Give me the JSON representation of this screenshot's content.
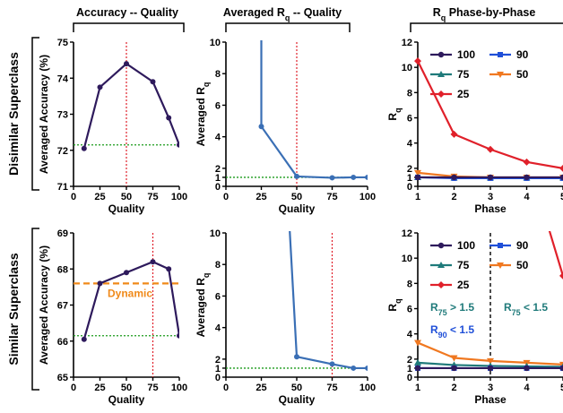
{
  "columns": {
    "left": "Accuracy -- Quality",
    "middle": {
      "main": "Averaged R",
      "sub": "q",
      "tail": " -- Quality"
    },
    "right": {
      "main": "R",
      "sub": "q",
      "tail": " Phase-by-Phase"
    }
  },
  "rows": {
    "top": "Disimilar Superclass",
    "bottom": "Similar Superclass"
  },
  "colors": {
    "accuracy_line": "#2e1a5c",
    "rq_line": "#3a6fb5",
    "q100": "#2e1a5c",
    "q90": "#1f4fd8",
    "q75": "#1f7a7a",
    "q50": "#f07820",
    "q25": "#e0202a",
    "ref_red": "#e0202a",
    "ref_green": "#1a9a1a",
    "dynamic": "#f08a1a"
  },
  "chart_data": [
    {
      "id": "acc_dis",
      "type": "line",
      "xlabel": "Quality",
      "ylabel": "Averaged Accuracy (%)",
      "xlim": [
        0,
        100
      ],
      "ylim": [
        71,
        75
      ],
      "xticks": [
        0,
        25,
        50,
        75,
        100
      ],
      "yticks": [
        71,
        72,
        73,
        74,
        75
      ],
      "x": [
        10,
        25,
        50,
        75,
        90,
        100
      ],
      "y": [
        72.05,
        73.75,
        74.4,
        73.9,
        72.9,
        72.15
      ],
      "vline": 50,
      "hline": 72.15
    },
    {
      "id": "acc_sim",
      "type": "line",
      "xlabel": "Quality",
      "ylabel": "Averaged Accuracy (%)",
      "xlim": [
        0,
        100
      ],
      "ylim": [
        65,
        69
      ],
      "xticks": [
        0,
        25,
        50,
        75,
        100
      ],
      "yticks": [
        65,
        66,
        67,
        68,
        69
      ],
      "x": [
        10,
        25,
        50,
        75,
        90,
        100
      ],
      "y": [
        66.05,
        67.6,
        67.9,
        68.2,
        68.0,
        66.15
      ],
      "vline": 75,
      "hline": 66.15,
      "dynamic_line": 67.6,
      "dynamic_label": "Dynamic"
    },
    {
      "id": "rq_dis",
      "type": "line",
      "xlabel": "Quality",
      "ylabel": {
        "main": "Averaged R",
        "sub": "q"
      },
      "xlim": [
        0,
        100
      ],
      "ylim": [
        0,
        10
      ],
      "xticks": [
        0,
        25,
        50,
        75,
        100
      ],
      "yticks": [
        0,
        1,
        2,
        4,
        6,
        8,
        10
      ],
      "x": [
        25,
        50,
        75,
        90,
        100
      ],
      "y": [
        4.65,
        1.1,
        0.95,
        1.0,
        1.0
      ],
      "vline": 50,
      "hline": 1
    },
    {
      "id": "rq_sim",
      "type": "line",
      "xlabel": "Quality",
      "ylabel": {
        "main": "Averaged R",
        "sub": "q"
      },
      "xlim": [
        0,
        100
      ],
      "ylim": [
        0,
        10
      ],
      "xticks": [
        0,
        25,
        50,
        75,
        100
      ],
      "yticks": [
        0,
        1,
        2,
        4,
        6,
        8,
        10
      ],
      "x": [
        50,
        75,
        90,
        100
      ],
      "y": [
        2.15,
        1.45,
        1.0,
        1.0
      ],
      "vline": 75,
      "hline": 1
    },
    {
      "id": "phase_dis",
      "type": "line",
      "xlabel": "Phase",
      "ylabel": {
        "main": "R",
        "sub": "q"
      },
      "xlim": [
        1,
        5
      ],
      "ylim": [
        0,
        12
      ],
      "xticks": [
        1,
        2,
        3,
        4,
        5
      ],
      "yticks": [
        0,
        1,
        2,
        4,
        6,
        8,
        10,
        12
      ],
      "x": [
        1,
        2,
        3,
        4,
        5
      ],
      "legend": [
        {
          "label": "100",
          "key": "q100"
        },
        {
          "label": "90",
          "key": "q90"
        },
        {
          "label": "75",
          "key": "q75"
        },
        {
          "label": "50",
          "key": "q50"
        },
        {
          "label": "25",
          "key": "q25"
        }
      ],
      "series": [
        {
          "key": "q25",
          "values": [
            10.5,
            4.7,
            3.5,
            2.5,
            2.0
          ]
        },
        {
          "key": "q50",
          "values": [
            1.5,
            1.1,
            1.0,
            1.0,
            1.0
          ]
        },
        {
          "key": "q75",
          "values": [
            1.0,
            0.95,
            0.95,
            0.95,
            0.95
          ]
        },
        {
          "key": "q90",
          "values": [
            1.0,
            0.9,
            0.9,
            0.9,
            0.9
          ]
        },
        {
          "key": "q100",
          "values": [
            1.0,
            1.0,
            1.0,
            1.0,
            1.0
          ]
        }
      ]
    },
    {
      "id": "phase_sim",
      "type": "line",
      "xlabel": "Phase",
      "ylabel": {
        "main": "R",
        "sub": "q"
      },
      "xlim": [
        1,
        5
      ],
      "ylim": [
        0,
        12
      ],
      "xticks": [
        1,
        2,
        3,
        4,
        5
      ],
      "yticks": [
        0,
        1,
        2,
        4,
        6,
        8,
        10,
        12
      ],
      "x": [
        1,
        2,
        3,
        4,
        5
      ],
      "vline": 3,
      "legend": [
        {
          "label": "100",
          "key": "q100"
        },
        {
          "label": "90",
          "key": "q90"
        },
        {
          "label": "75",
          "key": "q75"
        },
        {
          "label": "50",
          "key": "q50"
        },
        {
          "label": "25",
          "key": "q25"
        }
      ],
      "series": [
        {
          "key": "q25",
          "values": [
            null,
            null,
            null,
            null,
            8.6
          ]
        },
        {
          "key": "q50",
          "values": [
            3.3,
            2.1,
            1.8,
            1.6,
            1.4
          ]
        },
        {
          "key": "q75",
          "values": [
            1.6,
            1.35,
            1.25,
            1.2,
            1.15
          ]
        },
        {
          "key": "q90",
          "values": [
            1.0,
            1.0,
            1.0,
            1.0,
            1.0
          ]
        },
        {
          "key": "q100",
          "values": [
            1.0,
            1.0,
            1.0,
            1.0,
            1.0
          ]
        }
      ],
      "annotations": [
        {
          "main": "R",
          "sub": "75",
          "tail": " > 1.5",
          "key": "q75"
        },
        {
          "main": "R",
          "sub": "90",
          "tail": " < 1.5",
          "key": "q90"
        },
        {
          "main": "R",
          "sub": "75",
          "tail": " < 1.5",
          "key": "q75"
        }
      ]
    }
  ]
}
